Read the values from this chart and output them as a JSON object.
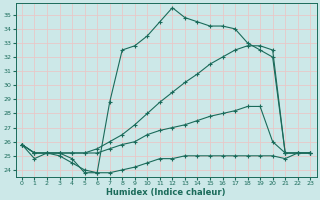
{
  "title": "",
  "xlabel": "Humidex (Indice chaleur)",
  "ylabel": "",
  "xlim": [
    -0.5,
    23.5
  ],
  "ylim": [
    23.5,
    35.8
  ],
  "yticks": [
    24,
    25,
    26,
    27,
    28,
    29,
    30,
    31,
    32,
    33,
    34,
    35
  ],
  "xticks": [
    0,
    1,
    2,
    3,
    4,
    5,
    6,
    7,
    8,
    9,
    10,
    11,
    12,
    13,
    14,
    15,
    16,
    17,
    18,
    19,
    20,
    21,
    22,
    23
  ],
  "line_color": "#1a6b5a",
  "bg_color": "#cce8e8",
  "grid_color": "#e8c8c8",
  "lines": [
    {
      "x": [
        0,
        1,
        2,
        3,
        4,
        5,
        6,
        7,
        8,
        9,
        10,
        11,
        12,
        13,
        14,
        15,
        16,
        17,
        18,
        19,
        20,
        21,
        22,
        23
      ],
      "y": [
        25.8,
        24.8,
        25.2,
        25.2,
        24.8,
        23.8,
        23.8,
        28.8,
        32.5,
        32.8,
        33.5,
        34.5,
        35.5,
        34.8,
        34.5,
        34.2,
        34.2,
        34.0,
        33.0,
        32.5,
        32.0,
        25.2,
        25.2,
        25.2
      ]
    },
    {
      "x": [
        0,
        1,
        2,
        3,
        4,
        5,
        6,
        7,
        8,
        9,
        10,
        11,
        12,
        13,
        14,
        15,
        16,
        17,
        18,
        19,
        20,
        21,
        22,
        23
      ],
      "y": [
        25.8,
        25.2,
        25.2,
        25.2,
        25.2,
        25.2,
        25.5,
        26.0,
        26.5,
        27.2,
        28.0,
        28.8,
        29.5,
        30.2,
        30.8,
        31.5,
        32.0,
        32.5,
        32.8,
        32.8,
        32.5,
        25.2,
        25.2,
        25.2
      ]
    },
    {
      "x": [
        0,
        1,
        2,
        3,
        4,
        5,
        6,
        7,
        8,
        9,
        10,
        11,
        12,
        13,
        14,
        15,
        16,
        17,
        18,
        19,
        20,
        21,
        22,
        23
      ],
      "y": [
        25.8,
        25.2,
        25.2,
        25.2,
        25.2,
        25.2,
        25.2,
        25.5,
        25.8,
        26.0,
        26.5,
        26.8,
        27.0,
        27.2,
        27.5,
        27.8,
        28.0,
        28.2,
        28.5,
        28.5,
        26.0,
        25.2,
        25.2,
        25.2
      ]
    },
    {
      "x": [
        0,
        1,
        2,
        3,
        4,
        5,
        6,
        7,
        8,
        9,
        10,
        11,
        12,
        13,
        14,
        15,
        16,
        17,
        18,
        19,
        20,
        21,
        22,
        23
      ],
      "y": [
        25.8,
        25.2,
        25.2,
        25.0,
        24.5,
        24.0,
        23.8,
        23.8,
        24.0,
        24.2,
        24.5,
        24.8,
        24.8,
        25.0,
        25.0,
        25.0,
        25.0,
        25.0,
        25.0,
        25.0,
        25.0,
        24.8,
        25.2,
        25.2
      ]
    }
  ]
}
